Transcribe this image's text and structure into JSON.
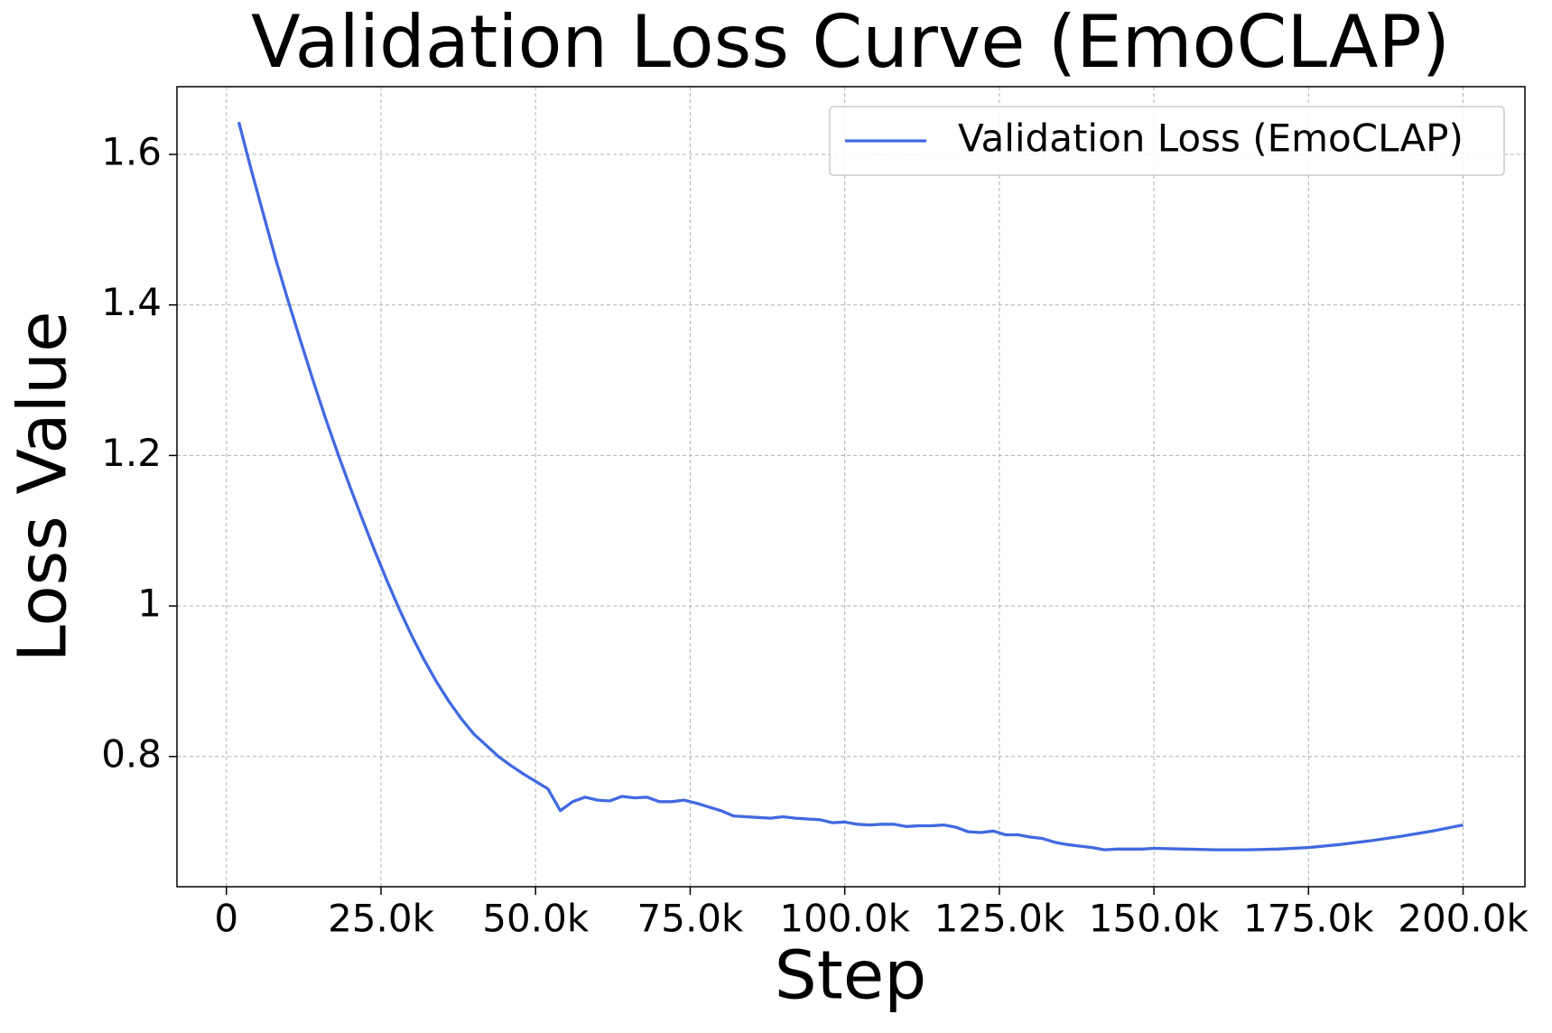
{
  "chart_data": {
    "type": "line",
    "title": "Validation Loss Curve (EmoCLAP)",
    "x_label": "Step",
    "y_label": "Loss Value",
    "x": [
      2000,
      4000,
      6000,
      8000,
      10000,
      12000,
      14000,
      16000,
      18000,
      20000,
      22000,
      24000,
      26000,
      28000,
      30000,
      32000,
      34000,
      36000,
      38000,
      40000,
      42000,
      44000,
      46000,
      48000,
      50000,
      52000,
      54000,
      56000,
      58000,
      60000,
      62000,
      64000,
      66000,
      68000,
      70000,
      72000,
      74000,
      76000,
      78000,
      80000,
      82000,
      84000,
      86000,
      88000,
      90000,
      92000,
      94000,
      96000,
      98000,
      100000,
      102000,
      104000,
      106000,
      108000,
      110000,
      112000,
      114000,
      116000,
      118000,
      120000,
      122000,
      124000,
      126000,
      128000,
      130000,
      132000,
      134000,
      136000,
      138000,
      140000,
      142000,
      144000,
      146000,
      148000,
      150000,
      155000,
      160000,
      165000,
      170000,
      175000,
      180000,
      185000,
      190000,
      195000,
      200000
    ],
    "series": [
      {
        "name": "Validation Loss (EmoCLAP)",
        "color": "#4169e1",
        "values": [
          1.643,
          1.58,
          1.52,
          1.46,
          1.405,
          1.352,
          1.3,
          1.25,
          1.203,
          1.158,
          1.115,
          1.073,
          1.033,
          0.995,
          0.96,
          0.928,
          0.899,
          0.873,
          0.85,
          0.83,
          0.815,
          0.8,
          0.788,
          0.777,
          0.767,
          0.757,
          0.728,
          0.74,
          0.746,
          0.742,
          0.741,
          0.747,
          0.745,
          0.746,
          0.74,
          0.74,
          0.742,
          0.738,
          0.733,
          0.728,
          0.721,
          0.72,
          0.719,
          0.718,
          0.72,
          0.718,
          0.717,
          0.716,
          0.712,
          0.713,
          0.71,
          0.709,
          0.71,
          0.71,
          0.707,
          0.708,
          0.708,
          0.709,
          0.706,
          0.7,
          0.699,
          0.701,
          0.696,
          0.696,
          0.693,
          0.691,
          0.686,
          0.683,
          0.681,
          0.679,
          0.676,
          0.677,
          0.677,
          0.677,
          0.678,
          0.677,
          0.676,
          0.676,
          0.677,
          0.679,
          0.683,
          0.688,
          0.694,
          0.701,
          0.709
        ]
      }
    ],
    "xlim": [
      -8000,
      210000
    ],
    "ylim": [
      0.627,
      1.69
    ],
    "xticks": [
      0,
      {
        "value": 25000,
        "label": "25.0k"
      },
      {
        "value": 50000,
        "label": "50.0k"
      },
      {
        "value": 75000,
        "label": "75.0k"
      },
      {
        "value": 100000,
        "label": "100.0k"
      },
      {
        "value": 125000,
        "label": "125.0k"
      },
      {
        "value": 150000,
        "label": "150.0k"
      },
      {
        "value": 175000,
        "label": "175.0k"
      },
      {
        "value": 200000,
        "label": "200.0k"
      }
    ],
    "yticks": [
      0.8,
      1.0,
      1.2,
      1.4,
      1.6
    ],
    "grid": true,
    "legend": "upper right"
  }
}
